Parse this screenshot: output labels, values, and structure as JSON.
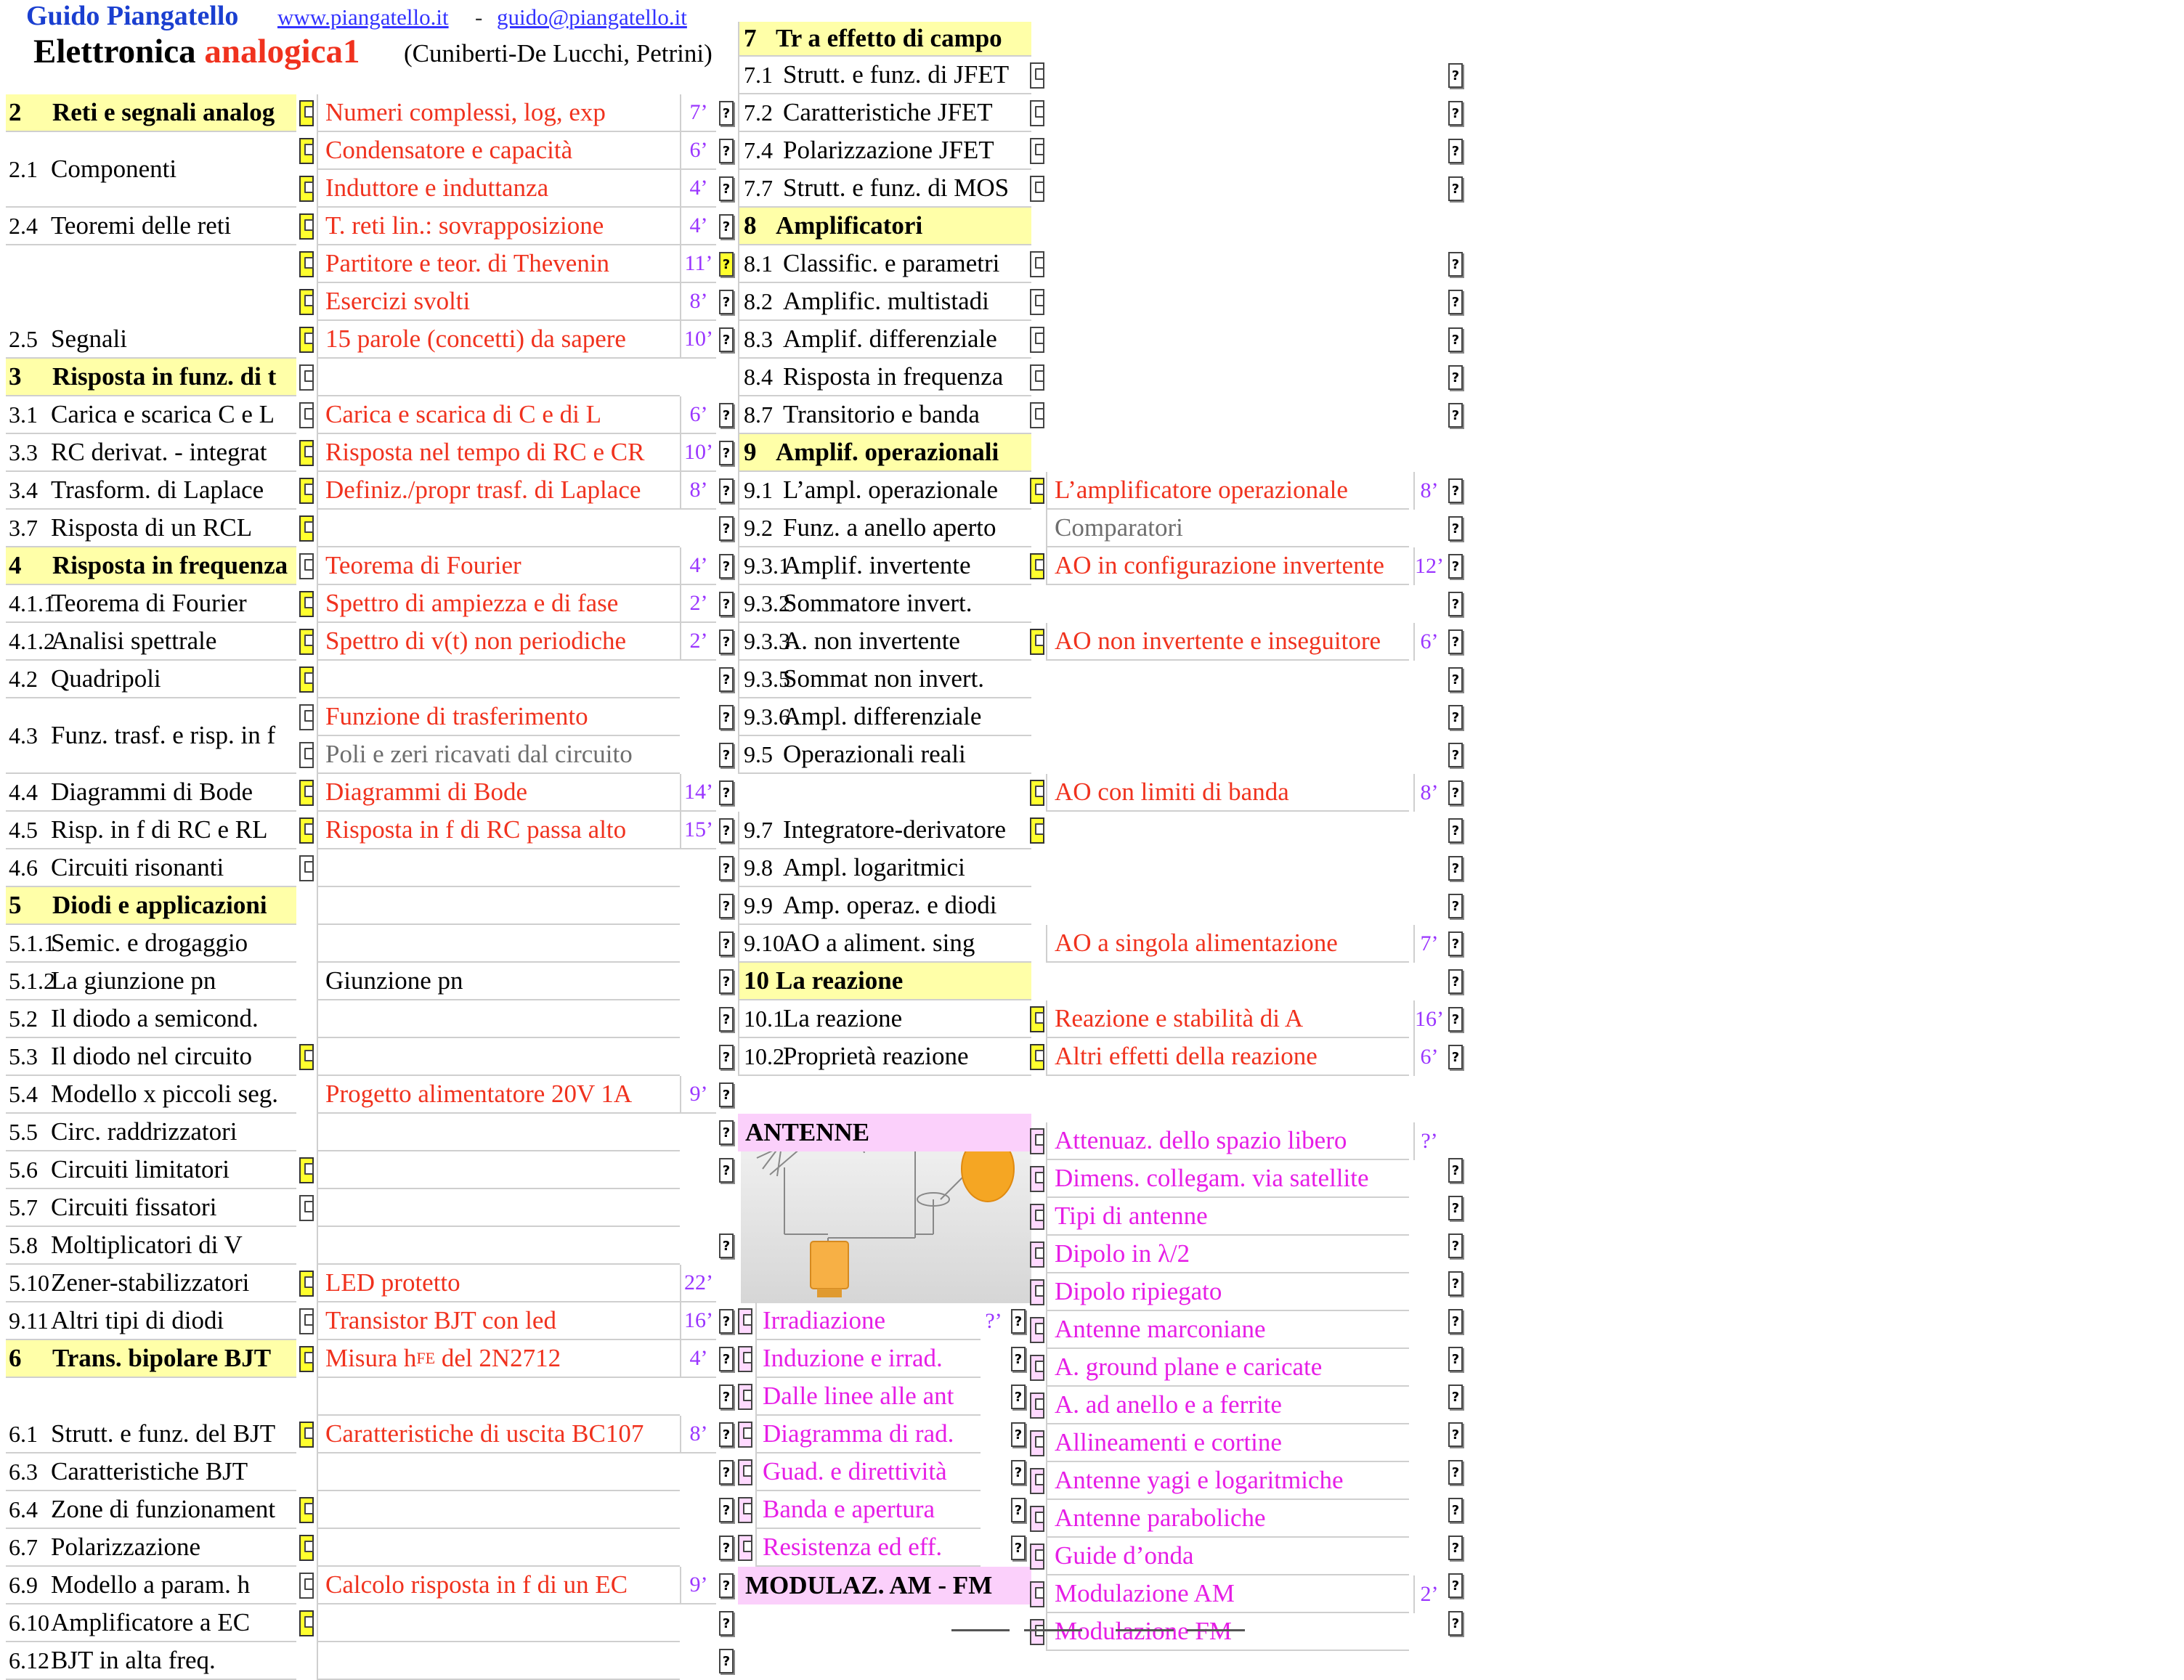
{
  "header": {
    "author": "Guido Piangatello",
    "website": "www.piangatello.it",
    "dash": "-",
    "email": "guido@piangatello.it",
    "title_black": "Elettronica ",
    "title_red": "analogica1",
    "subtitle": "(Cuniberti-De Lucchi, Petrini)"
  },
  "col1": [
    {
      "num": "2",
      "label": "Reti e segnali analog",
      "head": true
    },
    {
      "num": "2.1",
      "label": "Componenti"
    },
    {
      "num": "2.4",
      "label": "Teoremi delle reti"
    },
    {
      "num": "2.5",
      "label": "Segnali"
    },
    {
      "num": "3",
      "label": "Risposta in funz. di t",
      "head": true
    },
    {
      "num": "3.1",
      "label": "Carica e scarica C e L"
    },
    {
      "num": "3.3",
      "label": "RC derivat. - integrat"
    },
    {
      "num": "3.4",
      "label": "Trasform. di Laplace"
    },
    {
      "num": "3.7",
      "label": "Risposta di un RCL"
    },
    {
      "num": "4",
      "label": "Risposta in frequenza",
      "head": true
    },
    {
      "num": "4.1.1",
      "label": "Teorema di Fourier"
    },
    {
      "num": "4.1.2",
      "label": "Analisi spettrale"
    },
    {
      "num": "4.2",
      "label": "Quadripoli"
    },
    {
      "num": "4.3",
      "label": "Funz. trasf. e risp. in f"
    },
    {
      "num": "4.4",
      "label": "Diagrammi di Bode"
    },
    {
      "num": "4.5",
      "label": "Risp. in f di RC e RL"
    },
    {
      "num": "4.6",
      "label": "Circuiti risonanti"
    },
    {
      "num": "5",
      "label": "Diodi e applicazioni",
      "head": true
    },
    {
      "num": "5.1.1",
      "label": "Semic. e drogaggio"
    },
    {
      "num": "5.1.2",
      "label": "La giunzione pn"
    },
    {
      "num": "5.2",
      "label": "Il diodo a semicond."
    },
    {
      "num": "5.3",
      "label": "Il diodo nel circuito"
    },
    {
      "num": "5.4",
      "label": "Modello x piccoli seg."
    },
    {
      "num": "5.5",
      "label": "Circ. raddrizzatori"
    },
    {
      "num": "5.6",
      "label": "Circuiti limitatori"
    },
    {
      "num": "5.7",
      "label": "Circuiti fissatori"
    },
    {
      "num": "5.8",
      "label": "Moltiplicatori di V"
    },
    {
      "num": "5.10",
      "label": "Zener-stabilizzatori"
    },
    {
      "num": "9.11",
      "label": "Altri tipi di diodi"
    },
    {
      "num": "6",
      "label": "Trans. bipolare BJT",
      "head": true
    },
    {
      "num": "6.1",
      "label": "Strutt. e funz. del BJT"
    },
    {
      "num": "6.3",
      "label": "Caratteristiche BJT"
    },
    {
      "num": "6.4",
      "label": "Zone di funzionament"
    },
    {
      "num": "6.7",
      "label": "Polarizzazione"
    },
    {
      "num": "6.9",
      "label": "Modello a param. h"
    },
    {
      "num": "6.10",
      "label": "Amplificatore a EC"
    },
    {
      "num": "6.12",
      "label": "BJT in alta freq."
    }
  ],
  "col2": [
    {
      "label": "Numeri complessi, log, exp",
      "time": "7’"
    },
    {
      "label": "Condensatore e capacità",
      "time": "6’"
    },
    {
      "label": "Induttore e induttanza",
      "time": "4’"
    },
    {
      "label": "T. reti lin.: sovrapposizione",
      "time": "4’"
    },
    {
      "label": "Partitore e teor. di Thevenin",
      "time": "11’"
    },
    {
      "label": "Esercizi svolti",
      "time": "8’"
    },
    {
      "label": "15 parole (concetti) da sapere",
      "time": "10’"
    },
    {
      "label": "Carica e scarica di C e di L",
      "time": "6’"
    },
    {
      "label": "Risposta nel tempo di RC e CR",
      "time": "10’"
    },
    {
      "label": "Definiz./propr trasf. di Laplace",
      "time": "8’"
    },
    {
      "label": "Teorema di Fourier",
      "time": "4’"
    },
    {
      "label": "Spettro di ampiezza e di fase",
      "time": "2’"
    },
    {
      "label": "Spettro di v(t) non periodiche",
      "time": "2’"
    },
    {
      "label": "Funzione di trasferimento"
    },
    {
      "label": "Poli e zeri ricavati dal circuito"
    },
    {
      "label": "Diagrammi di Bode",
      "time": "14’"
    },
    {
      "label": "Risposta in f di RC passa alto",
      "time": "15’"
    },
    {
      "label": "Giunzione pn"
    },
    {
      "label": "Progetto alimentatore 20V 1A",
      "time": "9’"
    },
    {
      "label": "LED protetto",
      "time": "22’"
    },
    {
      "label": "Transistor BJT con led",
      "time": "16’"
    },
    {
      "label": "Misura h",
      "sub": "FE",
      "label2": " del 2N2712",
      "time": "4’"
    },
    {
      "label": "Caratteristiche di uscita BC107",
      "time": "8’"
    },
    {
      "label": "Calcolo risposta in f di un EC",
      "time": "9’"
    }
  ],
  "col3": [
    {
      "num": "7",
      "label": "Tr a effetto di campo",
      "head": true
    },
    {
      "num": "7.1",
      "label": "Strutt. e funz. di JFET"
    },
    {
      "num": "7.2",
      "label": "Caratteristiche JFET"
    },
    {
      "num": "7.4",
      "label": "Polarizzazione JFET"
    },
    {
      "num": "7.7",
      "label": "Strutt. e funz. di MOS"
    },
    {
      "num": "8",
      "label": "Amplificatori",
      "head": true
    },
    {
      "num": "8.1",
      "label": "Classific. e parametri"
    },
    {
      "num": "8.2",
      "label": "Amplific. multistadi"
    },
    {
      "num": "8.3",
      "label": "Amplif. differenziale"
    },
    {
      "num": "8.4",
      "label": "Risposta in frequenza"
    },
    {
      "num": "8.7",
      "label": "Transitorio e banda"
    },
    {
      "num": "9",
      "label": "Amplif. operazionali",
      "head": true
    },
    {
      "num": "9.1",
      "label": "L’ampl. operazionale"
    },
    {
      "num": "9.2",
      "label": "Funz. a anello aperto"
    },
    {
      "num": "9.3.1",
      "label": "Amplif. invertente"
    },
    {
      "num": "9.3.2",
      "label": "Sommatore  invert."
    },
    {
      "num": "9.3.3",
      "label": "A. non invertente"
    },
    {
      "num": "9.3.5",
      "label": "Sommat non invert."
    },
    {
      "num": "9.3.6",
      "label": "Ampl. differenziale"
    },
    {
      "num": "9.5",
      "label": "Operazionali reali"
    },
    {
      "num": "9.7",
      "label": "Integratore-derivatore"
    },
    {
      "num": "9.8",
      "label": "Ampl. logaritmici"
    },
    {
      "num": "9.9",
      "label": "Amp. operaz. e diodi"
    },
    {
      "num": "9.10",
      "label": "AO a aliment. sing"
    },
    {
      "num": "10",
      "label": "La reazione",
      "head": true
    },
    {
      "num": "10.1",
      "label": "La reazione"
    },
    {
      "num": "10.2",
      "label": "Proprietà reazione"
    },
    {
      "label": "ANTENNE",
      "pink": true
    },
    {
      "label": "Irradiazione",
      "time": "?’"
    },
    {
      "label": "Induzione e irrad."
    },
    {
      "label": "Dalle linee alle ant"
    },
    {
      "label": "Diagramma di rad."
    },
    {
      "label": "Guad. e direttività"
    },
    {
      "label": "Banda e apertura"
    },
    {
      "label": "Resistenza ed eff."
    },
    {
      "label": "MODULAZ. AM - FM",
      "pink": true
    }
  ],
  "col4": [
    {
      "label": "L’amplificatore operazionale",
      "time": "8’"
    },
    {
      "label": "Comparatori"
    },
    {
      "label": "AO in configurazione invertente",
      "time": "12’"
    },
    {
      "label": "AO non invertente e inseguitore",
      "time": "6’"
    },
    {
      "label": "AO con limiti di banda",
      "time": "8’"
    },
    {
      "label": "AO a singola alimentazione",
      "time": "7’"
    },
    {
      "label": "Reazione e stabilità di A",
      "time": "16’"
    },
    {
      "label": "Altri effetti della reazione",
      "time": "6’"
    },
    {
      "label": "Attenuaz. dello spazio libero",
      "time": "?’"
    },
    {
      "label": "Dimens. collegam. via satellite"
    },
    {
      "label": "Tipi di antenne"
    },
    {
      "label": "Dipolo in λ/2"
    },
    {
      "label": "Dipolo ripiegato"
    },
    {
      "label": "Antenne marconiane"
    },
    {
      "label": "A. ground plane e caricate"
    },
    {
      "label": "A. ad anello e a ferrite"
    },
    {
      "label": "Allineamenti e cortine"
    },
    {
      "label": "Antenne yagi e logaritmiche"
    },
    {
      "label": "Antenne paraboliche"
    },
    {
      "label": "Guide d’onda"
    },
    {
      "label": "Modulazione AM",
      "time": "2’"
    },
    {
      "label": "Modulazione FM"
    }
  ],
  "glyphs": {
    "help": "?"
  },
  "icons": {
    "document": "document-icon",
    "help": "question-icon",
    "antenna": "antenna-illustration"
  },
  "colors": {
    "header_bg": "#ffffa8",
    "antenne_bg": "#fbd0fb",
    "video_link": "#f0321e",
    "antenne_link": "#e61ee6",
    "duration": "#9a35ff",
    "author": "#1a3fd0"
  }
}
